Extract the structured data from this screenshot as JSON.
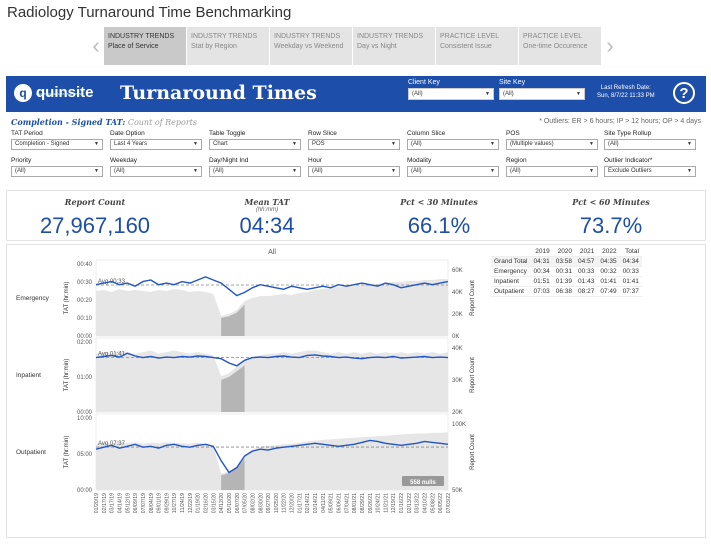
{
  "page_title": "Radiology Turnaround Time Benchmarking",
  "story_points": [
    {
      "title": "INDUSTRY TRENDS",
      "sub": "Place of Service",
      "active": true
    },
    {
      "title": "INDUSTRY TRENDS",
      "sub": "Stat by Region"
    },
    {
      "title": "INDUSTRY TRENDS",
      "sub": "Weekday vs Weekend"
    },
    {
      "title": "INDUSTRY TRENDS",
      "sub": "Day vs Night"
    },
    {
      "title": "PRACTICE LEVEL",
      "sub": "Consistent Issue"
    },
    {
      "title": "PRACTICE LEVEL",
      "sub": "One-time Occurence"
    }
  ],
  "header": {
    "logo_text": "quinsite",
    "logo_sub": "HEALTHCARE DATA ANALYTICS",
    "title": "Turnaround Times",
    "client_key_label": "Client Key",
    "client_key_value": "(All)",
    "site_key_label": "Site Key",
    "site_key_value": "(All)",
    "refresh_label": "Last Refresh Date:",
    "refresh_value": "Sun, 8/7/22 11:33 PM",
    "help": "?"
  },
  "subheader": {
    "bold": "Completion - Signed TAT:",
    "gray": "Count of Reports"
  },
  "outliers_note": "* Outliers: ER > 6 hours; IP > 12 hours; OP > 4 days",
  "filters": [
    {
      "label": "TAT Period",
      "value": "Completion - Signed"
    },
    {
      "label": "Date Option",
      "value": "Last 4 Years"
    },
    {
      "label": "Table Toggle",
      "value": "Chart"
    },
    {
      "label": "Row Slice",
      "value": "POS"
    },
    {
      "label": "Column Slice",
      "value": "(All)"
    },
    {
      "label": "POS",
      "value": "(Multiple values)"
    },
    {
      "label": "Site Type Rollup",
      "value": "(All)"
    },
    {
      "label": "Priority",
      "value": "(All)"
    },
    {
      "label": "Weekday",
      "value": "(All)"
    },
    {
      "label": "Day/Night Ind",
      "value": "(All)"
    },
    {
      "label": "Hour",
      "value": "(All)"
    },
    {
      "label": "Modality",
      "value": "(All)"
    },
    {
      "label": "Region",
      "value": "(All)"
    },
    {
      "label": "Outlier Indicator*",
      "value": "Exclude Outliers"
    }
  ],
  "kpis": [
    {
      "label": "Report Count",
      "sub": "",
      "value": "27,967,160"
    },
    {
      "label": "Mean TAT",
      "sub": "(hh:mm)",
      "value": "04:34"
    },
    {
      "label": "Pct < 30 Minutes",
      "sub": "",
      "value": "66.1%"
    },
    {
      "label": "Pct < 60 Minutes",
      "sub": "",
      "value": "73.7%"
    }
  ],
  "table": {
    "headers": [
      "",
      "2019",
      "2020",
      "2021",
      "2022",
      "Total"
    ],
    "rows": [
      [
        "Grand Total",
        "04:31",
        "03:58",
        "04:57",
        "04:35",
        "04:34"
      ],
      [
        "Emergency",
        "00:34",
        "00:31",
        "00:33",
        "00:32",
        "00:33"
      ],
      [
        "Inpatient",
        "01:51",
        "01:39",
        "01:43",
        "01:41",
        "01:41"
      ],
      [
        "Outpatient",
        "07:03",
        "06:38",
        "08:27",
        "07:49",
        "07:37"
      ]
    ]
  },
  "chart_data": {
    "type": "line",
    "title": "All",
    "ylabel_left": "TAT (hr:min)",
    "ylabel_right": "Report Count",
    "null_badge": "558 nulls",
    "x_tick_labels": [
      "01/20/19",
      "02/17/19",
      "03/17/19",
      "04/14/19",
      "05/12/19",
      "06/09/19",
      "07/07/19",
      "08/04/19",
      "09/01/19",
      "09/29/19",
      "10/27/19",
      "11/24/19",
      "12/22/19",
      "01/19/20",
      "02/16/20",
      "03/15/20",
      "04/12/20",
      "05/10/20",
      "06/07/20",
      "07/05/20",
      "08/02/20",
      "08/30/20",
      "09/27/20",
      "10/25/20",
      "11/22/20",
      "12/20/20",
      "01/17/21",
      "02/14/21",
      "03/14/21",
      "04/11/21",
      "05/09/21",
      "06/06/21",
      "07/04/21",
      "08/01/21",
      "08/29/21",
      "09/26/21",
      "10/24/21",
      "11/21/21",
      "12/19/21",
      "01/16/22",
      "02/13/22",
      "03/13/22",
      "04/10/22",
      "05/08/22",
      "06/05/22",
      "07/03/22"
    ],
    "panels": [
      {
        "name": "Emergency",
        "avg_label": "Avg 00:33",
        "y_ticks": [
          "00:40",
          "00:30",
          "00:20",
          "00:10",
          "00:00"
        ],
        "count_ticks": [
          "60K",
          "40K",
          "20K",
          "0K"
        ],
        "tat": [
          33,
          34,
          35,
          33,
          34,
          32,
          35,
          36,
          33,
          34,
          33,
          35,
          34,
          36,
          38,
          36,
          34,
          30,
          26,
          28,
          31,
          33,
          32,
          31,
          30,
          32,
          31,
          30,
          31,
          32,
          31,
          33,
          32,
          33,
          34,
          33,
          32,
          34,
          33,
          31,
          32,
          33,
          34,
          33,
          34,
          35
        ],
        "tat_max": 45,
        "counts": [
          45,
          46,
          44,
          47,
          45,
          46,
          45,
          44,
          46,
          45,
          47,
          46,
          44,
          45,
          44,
          42,
          20,
          22,
          26,
          35,
          38,
          40,
          40,
          41,
          42,
          41,
          43,
          44,
          46,
          47,
          48,
          49,
          50,
          50,
          51,
          52,
          52,
          53,
          54,
          54,
          55,
          55,
          56,
          56,
          57,
          57
        ],
        "count_max": 70
      },
      {
        "name": "Inpatient",
        "avg_label": "Avg 01:41",
        "y_ticks": [
          "02:00",
          "01:00",
          "00:00"
        ],
        "count_ticks": [
          "40K",
          "30K",
          "20K"
        ],
        "tat": [
          100,
          102,
          104,
          101,
          108,
          103,
          100,
          102,
          99,
          101,
          100,
          102,
          101,
          103,
          102,
          100,
          98,
          90,
          85,
          95,
          100,
          101,
          100,
          102,
          103,
          101,
          100,
          104,
          105,
          103,
          102,
          100,
          101,
          99,
          98,
          100,
          101,
          100,
          102,
          99,
          100,
          101,
          102,
          100,
          101,
          100
        ],
        "tat_max": 125,
        "counts": [
          36,
          37,
          36,
          38,
          37,
          36,
          37,
          38,
          36,
          37,
          38,
          37,
          36,
          37,
          36,
          35,
          22,
          24,
          28,
          32,
          34,
          35,
          36,
          36,
          37,
          36,
          37,
          38,
          38,
          37,
          36,
          37,
          36,
          37,
          36,
          37,
          36,
          37,
          36,
          37,
          36,
          37,
          36,
          37,
          36,
          37
        ],
        "count_max": 42
      },
      {
        "name": "Outpatient",
        "avg_label": "Avg 07:37",
        "y_ticks": [
          "10:00",
          "05:00",
          "00:00"
        ],
        "count_ticks": [
          "100K",
          "50K"
        ],
        "tat": [
          420,
          440,
          460,
          430,
          450,
          470,
          440,
          450,
          430,
          460,
          470,
          450,
          440,
          460,
          470,
          450,
          300,
          180,
          230,
          350,
          400,
          420,
          410,
          430,
          440,
          450,
          460,
          470,
          480,
          470,
          460,
          450,
          460,
          470,
          490,
          510,
          500,
          480,
          470,
          460,
          470,
          480,
          500,
          490,
          480,
          470
        ],
        "tat_max": 720,
        "counts": [
          85,
          88,
          86,
          90,
          87,
          89,
          86,
          88,
          87,
          89,
          88,
          87,
          86,
          88,
          85,
          82,
          30,
          35,
          45,
          65,
          75,
          80,
          82,
          83,
          85,
          86,
          88,
          90,
          92,
          93,
          94,
          95,
          96,
          97,
          98,
          99,
          100,
          101,
          102,
          103,
          104,
          105,
          105,
          106,
          106,
          107
        ],
        "count_max": 130
      }
    ]
  },
  "colors": {
    "brand": "#1d4ea9",
    "line": "#2155c4",
    "count_area": "#e6e6e6",
    "covid_band": "#b5b5b5"
  }
}
